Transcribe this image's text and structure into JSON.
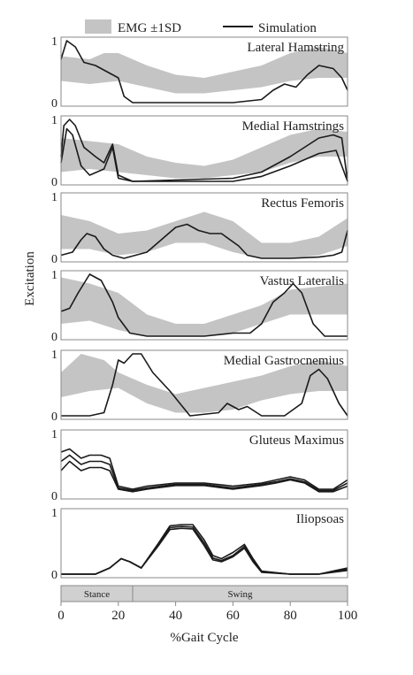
{
  "legend": {
    "band_label": "EMG ±1SD",
    "line_label": "Simulation"
  },
  "ylabel": "Excitation",
  "xlabel": "%Gait Cycle",
  "phase_bar": {
    "stance": "Stance",
    "swing": "Swing",
    "split_pct": 25
  },
  "colors": {
    "band": "#c4c4c4",
    "line": "#1a1a1a",
    "frame": "#8a8a8a",
    "phase_bg": "#d0d0d0"
  },
  "chart_data": {
    "type": "line",
    "x_ticks": [
      0,
      20,
      40,
      60,
      80,
      100
    ],
    "xlim": [
      0,
      100
    ],
    "ylim": [
      0,
      1
    ],
    "y_ticks": [
      0,
      1
    ],
    "grid": false,
    "legend_position": "top",
    "panels": [
      {
        "title": "Lateral Hamstring",
        "band_lower": [
          [
            0,
            0.35
          ],
          [
            10,
            0.3
          ],
          [
            20,
            0.35
          ],
          [
            30,
            0.25
          ],
          [
            40,
            0.15
          ],
          [
            50,
            0.15
          ],
          [
            60,
            0.2
          ],
          [
            70,
            0.25
          ],
          [
            80,
            0.35
          ],
          [
            90,
            0.4
          ],
          [
            100,
            0.4
          ]
        ],
        "band_upper": [
          [
            0,
            0.75
          ],
          [
            10,
            0.7
          ],
          [
            15,
            0.8
          ],
          [
            20,
            0.8
          ],
          [
            30,
            0.6
          ],
          [
            40,
            0.45
          ],
          [
            50,
            0.4
          ],
          [
            60,
            0.5
          ],
          [
            70,
            0.6
          ],
          [
            80,
            0.8
          ],
          [
            90,
            0.9
          ],
          [
            100,
            0.8
          ]
        ],
        "series": [
          {
            "x": [
              0,
              2,
              5,
              8,
              12,
              18,
              20,
              22,
              25,
              30,
              50,
              60,
              70,
              74,
              78,
              82,
              86,
              90,
              95,
              98,
              100
            ],
            "y": [
              0.7,
              1.0,
              0.9,
              0.65,
              0.6,
              0.45,
              0.4,
              0.1,
              0.0,
              0.0,
              0.0,
              0.0,
              0.05,
              0.2,
              0.3,
              0.25,
              0.45,
              0.6,
              0.55,
              0.4,
              0.2
            ]
          }
        ]
      },
      {
        "title": "Medial Hamstrings",
        "band_lower": [
          [
            0,
            0.15
          ],
          [
            10,
            0.2
          ],
          [
            20,
            0.15
          ],
          [
            30,
            0.1
          ],
          [
            40,
            0.05
          ],
          [
            50,
            0.05
          ],
          [
            60,
            0.1
          ],
          [
            70,
            0.15
          ],
          [
            80,
            0.3
          ],
          [
            90,
            0.4
          ],
          [
            100,
            0.4
          ]
        ],
        "band_upper": [
          [
            0,
            0.7
          ],
          [
            10,
            0.65
          ],
          [
            20,
            0.6
          ],
          [
            30,
            0.4
          ],
          [
            40,
            0.3
          ],
          [
            50,
            0.25
          ],
          [
            60,
            0.35
          ],
          [
            70,
            0.55
          ],
          [
            80,
            0.75
          ],
          [
            90,
            0.85
          ],
          [
            100,
            0.8
          ]
        ],
        "series": [
          {
            "x": [
              0,
              1,
              3,
              5,
              8,
              12,
              15,
              18,
              20,
              25,
              60,
              70,
              80,
              90,
              95,
              98,
              100
            ],
            "y": [
              0.4,
              0.9,
              1.0,
              0.9,
              0.55,
              0.4,
              0.3,
              0.6,
              0.1,
              0.0,
              0.05,
              0.15,
              0.4,
              0.7,
              0.75,
              0.7,
              0.0
            ]
          },
          {
            "x": [
              0,
              2,
              4,
              7,
              10,
              15,
              18,
              20,
              25,
              60,
              70,
              80,
              90,
              96,
              100
            ],
            "y": [
              0.3,
              0.85,
              0.75,
              0.25,
              0.1,
              0.2,
              0.55,
              0.05,
              0.0,
              0.0,
              0.08,
              0.25,
              0.45,
              0.5,
              0.0
            ]
          }
        ]
      },
      {
        "title": "Rectus Femoris",
        "band_lower": [
          [
            0,
            0.15
          ],
          [
            10,
            0.15
          ],
          [
            20,
            0.05
          ],
          [
            30,
            0.1
          ],
          [
            40,
            0.25
          ],
          [
            50,
            0.25
          ],
          [
            60,
            0.1
          ],
          [
            70,
            0.0
          ],
          [
            80,
            0.0
          ],
          [
            90,
            0.05
          ],
          [
            100,
            0.2
          ]
        ],
        "band_upper": [
          [
            0,
            0.7
          ],
          [
            10,
            0.6
          ],
          [
            20,
            0.4
          ],
          [
            30,
            0.45
          ],
          [
            40,
            0.6
          ],
          [
            50,
            0.75
          ],
          [
            60,
            0.6
          ],
          [
            70,
            0.25
          ],
          [
            80,
            0.25
          ],
          [
            90,
            0.35
          ],
          [
            100,
            0.65
          ]
        ],
        "series": [
          {
            "x": [
              0,
              4,
              7,
              9,
              12,
              15,
              18,
              22,
              30,
              35,
              40,
              44,
              48,
              52,
              56,
              62,
              65,
              70,
              80,
              90,
              95,
              98,
              100
            ],
            "y": [
              0.05,
              0.1,
              0.3,
              0.4,
              0.35,
              0.15,
              0.05,
              0.0,
              0.1,
              0.3,
              0.5,
              0.55,
              0.45,
              0.4,
              0.4,
              0.2,
              0.05,
              0.0,
              0.0,
              0.02,
              0.05,
              0.1,
              0.45
            ]
          }
        ]
      },
      {
        "title": "Vastus Lateralis",
        "band_lower": [
          [
            0,
            0.2
          ],
          [
            10,
            0.25
          ],
          [
            20,
            0.1
          ],
          [
            30,
            0.0
          ],
          [
            40,
            0.0
          ],
          [
            50,
            0.0
          ],
          [
            60,
            0.05
          ],
          [
            70,
            0.2
          ],
          [
            80,
            0.35
          ],
          [
            90,
            0.35
          ],
          [
            100,
            0.35
          ]
        ],
        "band_upper": [
          [
            0,
            0.95
          ],
          [
            10,
            0.85
          ],
          [
            20,
            0.7
          ],
          [
            30,
            0.35
          ],
          [
            40,
            0.2
          ],
          [
            50,
            0.2
          ],
          [
            60,
            0.35
          ],
          [
            70,
            0.5
          ],
          [
            80,
            0.75
          ],
          [
            90,
            0.8
          ],
          [
            100,
            0.85
          ]
        ],
        "series": [
          {
            "x": [
              0,
              3,
              6,
              10,
              14,
              18,
              20,
              24,
              30,
              50,
              60,
              66,
              70,
              74,
              78,
              81,
              84,
              88,
              92,
              100
            ],
            "y": [
              0.4,
              0.45,
              0.7,
              1.0,
              0.9,
              0.55,
              0.3,
              0.05,
              0.0,
              0.0,
              0.05,
              0.05,
              0.2,
              0.55,
              0.7,
              0.85,
              0.7,
              0.2,
              0.0,
              0.0
            ]
          }
        ]
      },
      {
        "title": "Medial Gastrocnemius",
        "band_lower": [
          [
            0,
            0.3
          ],
          [
            10,
            0.4
          ],
          [
            20,
            0.45
          ],
          [
            30,
            0.2
          ],
          [
            40,
            0.05
          ],
          [
            50,
            0.05
          ],
          [
            60,
            0.1
          ],
          [
            70,
            0.25
          ],
          [
            80,
            0.35
          ],
          [
            90,
            0.4
          ],
          [
            100,
            0.4
          ]
        ],
        "band_upper": [
          [
            0,
            0.7
          ],
          [
            7,
            1.0
          ],
          [
            15,
            0.9
          ],
          [
            20,
            0.7
          ],
          [
            30,
            0.5
          ],
          [
            40,
            0.35
          ],
          [
            50,
            0.45
          ],
          [
            60,
            0.55
          ],
          [
            70,
            0.65
          ],
          [
            80,
            0.8
          ],
          [
            90,
            0.9
          ],
          [
            100,
            0.8
          ]
        ],
        "series": [
          {
            "x": [
              0,
              10,
              15,
              18,
              20,
              22,
              25,
              28,
              32,
              38,
              45,
              55,
              58,
              62,
              65,
              70,
              78,
              84,
              87,
              90,
              93,
              97,
              100
            ],
            "y": [
              0.0,
              0.0,
              0.05,
              0.5,
              0.9,
              0.85,
              1.0,
              1.0,
              0.7,
              0.4,
              0.0,
              0.05,
              0.2,
              0.1,
              0.15,
              0.0,
              0.0,
              0.2,
              0.65,
              0.75,
              0.6,
              0.2,
              0.0
            ]
          }
        ]
      },
      {
        "title": "Gluteus Maximus",
        "band_lower": [],
        "band_upper": [],
        "series": [
          {
            "x": [
              0,
              3,
              7,
              10,
              14,
              17,
              20,
              25,
              30,
              40,
              50,
              60,
              70,
              75,
              80,
              85,
              90,
              95,
              100
            ],
            "y": [
              0.7,
              0.75,
              0.6,
              0.65,
              0.65,
              0.6,
              0.15,
              0.1,
              0.15,
              0.2,
              0.2,
              0.15,
              0.2,
              0.25,
              0.3,
              0.25,
              0.1,
              0.1,
              0.25
            ]
          },
          {
            "x": [
              0,
              3,
              7,
              10,
              14,
              17,
              20,
              25,
              30,
              40,
              50,
              60,
              70,
              75,
              80,
              85,
              90,
              95,
              100
            ],
            "y": [
              0.55,
              0.65,
              0.5,
              0.55,
              0.55,
              0.5,
              0.12,
              0.08,
              0.12,
              0.18,
              0.18,
              0.12,
              0.18,
              0.22,
              0.27,
              0.22,
              0.08,
              0.08,
              0.2
            ]
          },
          {
            "x": [
              0,
              3,
              7,
              10,
              14,
              17,
              20,
              25,
              30,
              40,
              50,
              60,
              70,
              75,
              80,
              85,
              90,
              95,
              100
            ],
            "y": [
              0.4,
              0.55,
              0.4,
              0.45,
              0.45,
              0.4,
              0.1,
              0.06,
              0.1,
              0.16,
              0.16,
              0.1,
              0.16,
              0.2,
              0.25,
              0.2,
              0.06,
              0.06,
              0.15
            ]
          }
        ]
      },
      {
        "title": "Iliopsoas",
        "band_lower": [],
        "band_upper": [],
        "series": [
          {
            "x": [
              0,
              12,
              17,
              21,
              24,
              28,
              34,
              38,
              42,
              46,
              50,
              53,
              56,
              60,
              64,
              67,
              70,
              80,
              90,
              100
            ],
            "y": [
              0.0,
              0.0,
              0.1,
              0.25,
              0.2,
              0.1,
              0.5,
              0.78,
              0.8,
              0.8,
              0.55,
              0.3,
              0.25,
              0.35,
              0.48,
              0.25,
              0.05,
              0.0,
              0.0,
              0.1
            ]
          },
          {
            "x": [
              0,
              12,
              17,
              21,
              24,
              28,
              34,
              38,
              42,
              46,
              50,
              53,
              56,
              60,
              64,
              67,
              70,
              80,
              90,
              100
            ],
            "y": [
              0.0,
              0.0,
              0.1,
              0.25,
              0.2,
              0.1,
              0.48,
              0.75,
              0.77,
              0.76,
              0.5,
              0.26,
              0.22,
              0.3,
              0.45,
              0.22,
              0.04,
              0.0,
              0.0,
              0.08
            ]
          },
          {
            "x": [
              0,
              12,
              17,
              21,
              24,
              28,
              34,
              38,
              42,
              46,
              50,
              53,
              56,
              60,
              64,
              67,
              70,
              80,
              90,
              100
            ],
            "y": [
              0.0,
              0.0,
              0.1,
              0.25,
              0.2,
              0.1,
              0.46,
              0.72,
              0.74,
              0.73,
              0.46,
              0.23,
              0.2,
              0.28,
              0.42,
              0.2,
              0.03,
              0.0,
              0.0,
              0.06
            ]
          }
        ]
      }
    ]
  }
}
